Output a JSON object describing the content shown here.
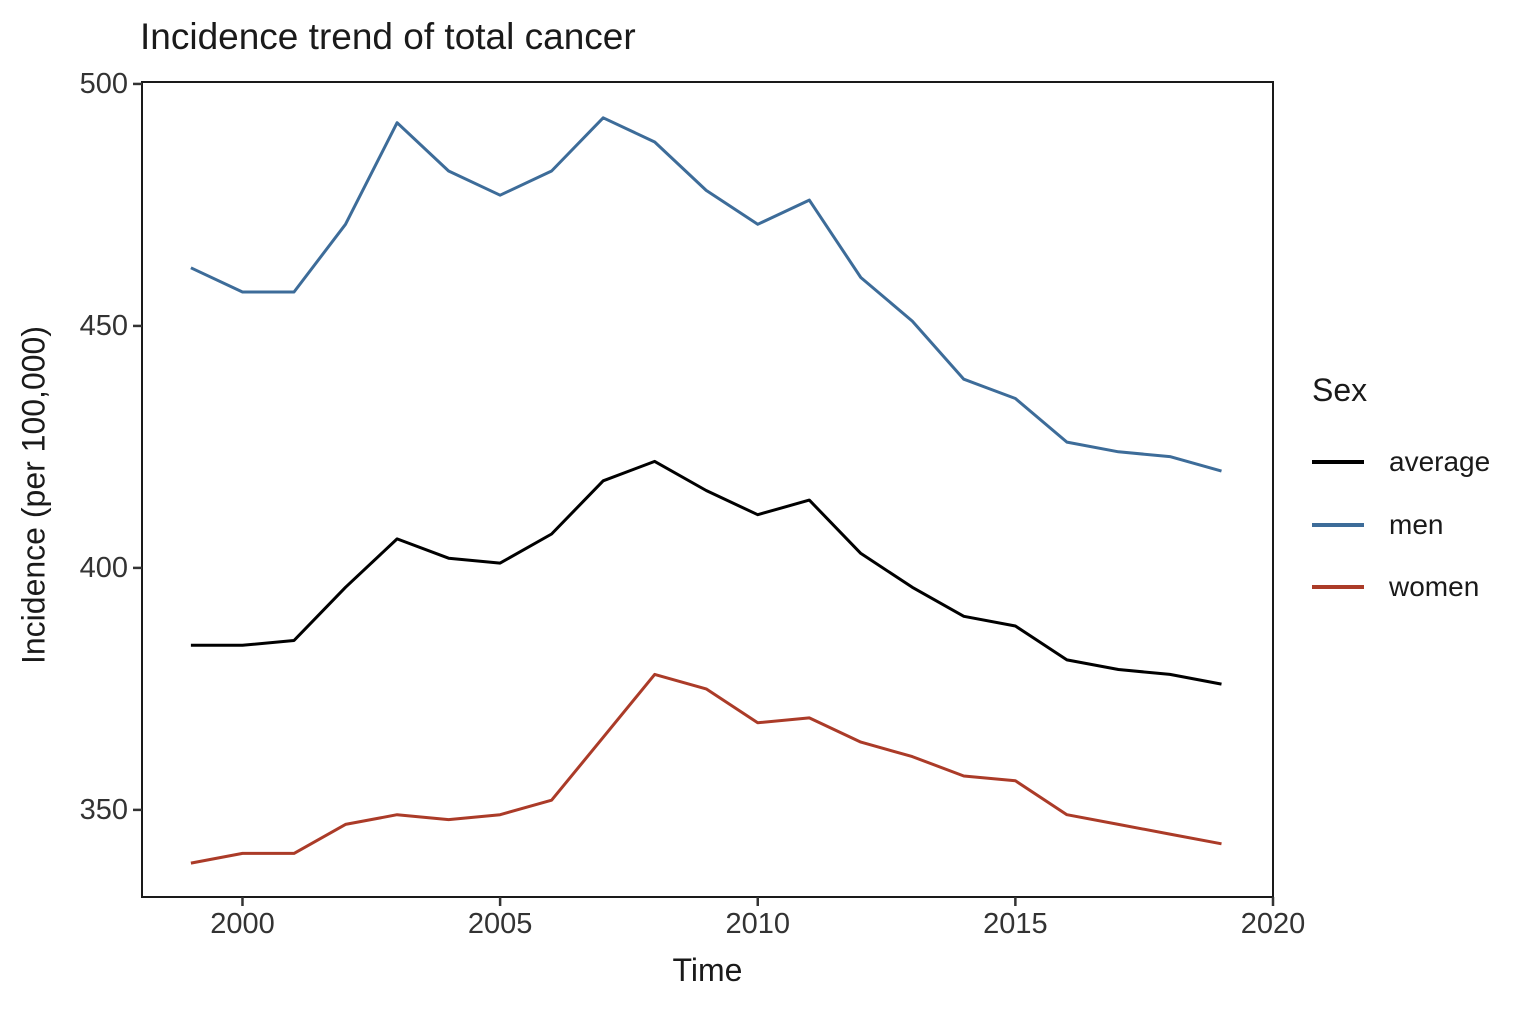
{
  "chart_data": {
    "type": "line",
    "title": "Incidence trend of total cancer",
    "xlabel": "Time",
    "ylabel": "Incidence (per 100,000)",
    "grid": false,
    "legend": {
      "title": "Sex",
      "position": "right"
    },
    "x_ticks": [
      2000,
      2005,
      2010,
      2015,
      2020
    ],
    "y_ticks": [
      500,
      450,
      400,
      350
    ],
    "x_range": [
      1998.05,
      2020
    ],
    "y_range": [
      332,
      500.4
    ],
    "x": [
      1999,
      2000,
      2001,
      2002,
      2003,
      2004,
      2005,
      2006,
      2007,
      2008,
      2009,
      2010,
      2011,
      2012,
      2013,
      2014,
      2015,
      2016,
      2017,
      2018,
      2019
    ],
    "series": [
      {
        "name": "average",
        "color": "#000000",
        "values": [
          384,
          384,
          385,
          396,
          406,
          402,
          401,
          407,
          418,
          422,
          416,
          411,
          414,
          403,
          396,
          390,
          388,
          381,
          379,
          378,
          376
        ]
      },
      {
        "name": "men",
        "color": "#3d6c99",
        "values": [
          462,
          457,
          457,
          471,
          492,
          482,
          477,
          482,
          493,
          488,
          478,
          471,
          476,
          460,
          451,
          439,
          435,
          426,
          424,
          423,
          420
        ]
      },
      {
        "name": "women",
        "color": "#ab3b28",
        "values": [
          339,
          341,
          341,
          347,
          349,
          348,
          349,
          352,
          365,
          378,
          375,
          368,
          369,
          364,
          361,
          357,
          356,
          349,
          347,
          345,
          343
        ]
      }
    ]
  }
}
